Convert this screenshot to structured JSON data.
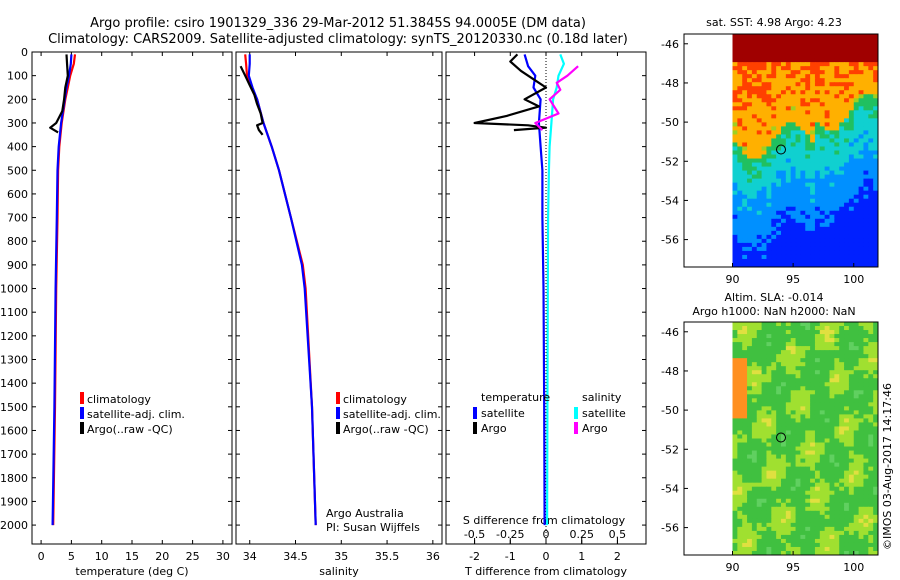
{
  "titles": {
    "line1": "Argo profile: csiro 1901329_336 29-Mar-2012 51.3845S 94.0005E (DM data)",
    "line2": "Climatology: CARS2009. Satellite-adjusted climatology: synTS_20120330.nc (0.18d later)",
    "map1": "sat. SST: 4.98 Argo: 4.23",
    "map2_line1": "Altim. SLA: -0.014",
    "map2_line2": "Argo h1000: NaN h2000: NaN",
    "stamp": "©IMOS 03-Aug-2017 14:17:46"
  },
  "colors": {
    "climatology": "#ff0000",
    "satellite": "#0000ff",
    "argo": "#000000",
    "satellite_s": "#00ffff",
    "argo_s": "#ff00ff"
  },
  "depth_ticks": [
    0,
    100,
    200,
    300,
    400,
    500,
    600,
    700,
    800,
    900,
    1000,
    1100,
    1200,
    1300,
    1400,
    1500,
    1600,
    1700,
    1800,
    1900,
    2000
  ],
  "chart_data": [
    {
      "type": "line",
      "xlabel": "temperature (deg C)",
      "xticks": [
        0,
        5,
        10,
        15,
        20,
        25,
        30
      ],
      "xlim": [
        -1.5,
        31.5
      ],
      "ylim": [
        2080,
        0
      ],
      "legend": {
        "items": [
          "climatology",
          "satellite-adj. clim.",
          "Argo(..raw -QC)"
        ]
      },
      "series": [
        {
          "name": "climatology",
          "color": "#ff0000",
          "depth": [
            10,
            50,
            100,
            150,
            200,
            300,
            400,
            500,
            700,
            1000,
            1500,
            2000
          ],
          "values": [
            5.6,
            5.4,
            4.8,
            4.4,
            4.0,
            3.4,
            3.0,
            2.8,
            2.7,
            2.5,
            2.3,
            2.0
          ]
        },
        {
          "name": "satellite-adj. clim.",
          "color": "#0000ff",
          "depth": [
            10,
            50,
            100,
            150,
            200,
            300,
            400,
            500,
            700,
            1000,
            1500,
            2000
          ],
          "values": [
            5.0,
            4.9,
            4.6,
            4.2,
            3.9,
            3.3,
            2.9,
            2.7,
            2.6,
            2.4,
            2.2,
            1.9
          ]
        },
        {
          "name": "Argo(..raw -QC)",
          "color": "#000000",
          "depth": [
            10,
            60,
            100,
            150,
            200,
            250,
            300,
            320,
            340
          ],
          "values": [
            4.2,
            4.3,
            4.4,
            4.0,
            3.8,
            3.5,
            2.5,
            1.5,
            2.8
          ]
        }
      ]
    },
    {
      "type": "line",
      "xlabel": "salinity",
      "xticks": [
        34,
        34.5,
        35,
        35.5,
        36
      ],
      "xticklabels": [
        "34",
        "34.5",
        "35",
        "35.5",
        "36"
      ],
      "xlim": [
        33.85,
        36.1
      ],
      "ylim": [
        2080,
        0
      ],
      "legend": {
        "items": [
          "climatology",
          "satellite-adj. clim.",
          "Argo(..raw -QC)"
        ]
      },
      "annotation": [
        "Argo Australia",
        "PI: Susan Wijffels"
      ],
      "series": [
        {
          "name": "climatology",
          "color": "#ff0000",
          "depth": [
            10,
            50,
            100,
            150,
            200,
            300,
            400,
            500,
            700,
            900,
            1000,
            1500,
            2000
          ],
          "values": [
            33.95,
            33.96,
            33.97,
            34.02,
            34.08,
            34.15,
            34.24,
            34.32,
            34.45,
            34.58,
            34.61,
            34.68,
            34.72
          ]
        },
        {
          "name": "satellite-adj. clim.",
          "color": "#0000ff",
          "depth": [
            10,
            50,
            100,
            150,
            200,
            300,
            400,
            500,
            700,
            900,
            1000,
            1500,
            2000
          ],
          "values": [
            34.0,
            34.0,
            33.99,
            34.03,
            34.08,
            34.15,
            34.24,
            34.32,
            34.45,
            34.57,
            34.6,
            34.68,
            34.72
          ]
        },
        {
          "name": "Argo(..raw -QC)",
          "color": "#000000",
          "depth": [
            60,
            100,
            140,
            180,
            220,
            260,
            300,
            310,
            330,
            350
          ],
          "values": [
            33.9,
            33.95,
            34.0,
            34.05,
            34.08,
            34.12,
            34.14,
            34.08,
            34.1,
            34.14
          ]
        }
      ]
    },
    {
      "type": "line",
      "xlabel": "T difference from climatology",
      "xtitle_top": "S difference from climatology",
      "xticks": [
        -2,
        -1,
        0,
        1,
        2
      ],
      "xticklabels": [
        "-2",
        "-1",
        "0",
        "1",
        "2"
      ],
      "xticks_top": [
        -0.5,
        -0.25,
        0,
        0.25,
        0.5
      ],
      "xticklabels_top": [
        "-0.5",
        "-0.25",
        "0",
        "0.25",
        "0.5"
      ],
      "xlim": [
        -2.8,
        2.8
      ],
      "ylim": [
        2080,
        0
      ],
      "legend": {
        "temperature_header": "temperature",
        "salinity_header": "salinity",
        "items": [
          "satellite",
          "Argo",
          "satellite",
          "Argo"
        ]
      },
      "series": [
        {
          "name": "satellite",
          "color": "#0000ff",
          "depth": [
            10,
            60,
            100,
            150,
            200,
            300,
            400,
            500,
            700,
            1000,
            1500,
            2000
          ],
          "values": [
            -0.6,
            -0.5,
            -0.3,
            -0.35,
            -0.15,
            -0.2,
            -0.15,
            -0.1,
            -0.1,
            -0.07,
            -0.05,
            -0.04
          ]
        },
        {
          "name": "Argo",
          "color": "#000000",
          "depth": [
            10,
            40,
            80,
            120,
            150,
            200,
            230,
            270,
            300,
            310,
            320,
            330
          ],
          "values": [
            -0.8,
            -1.0,
            -0.7,
            -0.3,
            0.0,
            -0.6,
            -0.2,
            -1.1,
            -2.0,
            -0.5,
            0.0,
            -0.9
          ]
        },
        {
          "name": "satellite",
          "color": "#00ffff",
          "depth": [
            10,
            50,
            100,
            150,
            200,
            300,
            400,
            500,
            700,
            1000,
            1500,
            2000
          ],
          "values": [
            0.4,
            0.5,
            0.35,
            0.3,
            0.2,
            0.15,
            0.1,
            0.08,
            0.06,
            0.05,
            0.04,
            0.03
          ]
        },
        {
          "name": "Argo",
          "color": "#ff00ff",
          "depth": [
            60,
            100,
            130,
            160,
            200,
            260,
            300,
            330
          ],
          "values": [
            0.9,
            0.6,
            0.3,
            0.4,
            0.1,
            0.35,
            -0.3,
            -0.1
          ]
        }
      ]
    },
    {
      "type": "heatmap",
      "title": "sat. SST: 4.98 Argo: 4.23",
      "xlim": [
        86,
        102
      ],
      "ylim": [
        -57.4,
        -45.5
      ],
      "data_xlim": [
        90,
        102
      ],
      "xticks": [
        90,
        95,
        100
      ],
      "yticks": [
        -46,
        -48,
        -50,
        -52,
        -54,
        -56
      ],
      "marker": {
        "lon": 94.0,
        "lat": -51.4
      }
    },
    {
      "type": "heatmap",
      "title": "Altim. SLA: -0.014",
      "subtitle": "Argo h1000: NaN h2000: NaN",
      "xlim": [
        86,
        102
      ],
      "ylim": [
        -57.4,
        -45.5
      ],
      "data_xlim": [
        90,
        102
      ],
      "xticks": [
        90,
        95,
        100
      ],
      "yticks": [
        -46,
        -48,
        -50,
        -52,
        -54,
        -56
      ],
      "marker": {
        "lon": 94.0,
        "lat": -51.4
      }
    }
  ]
}
